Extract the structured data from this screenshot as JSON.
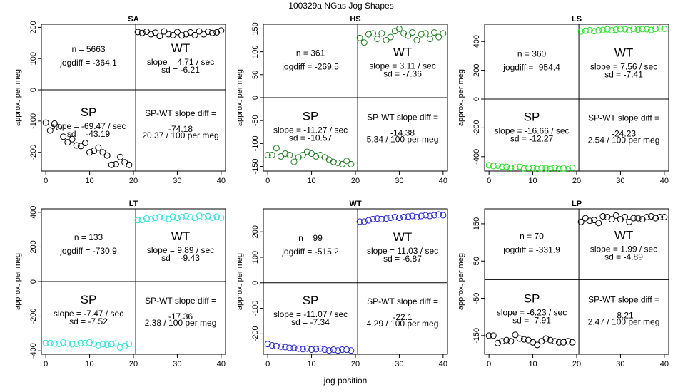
{
  "page": {
    "title": "100329a    NGas Jog Shapes",
    "xlabel": "jog position",
    "ylabel": "approx. per meg"
  },
  "chart_data": [
    {
      "type": "scatter",
      "title": "SA",
      "color": "#000000",
      "xlim": [
        -1,
        41
      ],
      "ylim": [
        -260,
        210
      ],
      "xticks": [
        0,
        10,
        20,
        30,
        40
      ],
      "yticks": [
        -200,
        -100,
        0,
        100,
        200
      ],
      "sp": [
        -105,
        -130,
        -108,
        -120,
        -150,
        -168,
        -158,
        -178,
        -180,
        -170,
        -200,
        -195,
        -185,
        -200,
        -210,
        -240,
        -238,
        -215,
        -232,
        -240
      ],
      "wt": [
        185,
        182,
        186,
        178,
        183,
        172,
        187,
        178,
        175,
        185,
        174,
        178,
        184,
        175,
        187,
        178,
        186,
        182,
        184,
        190
      ],
      "n": "n = 5663",
      "jogdiff": "jogdiff = -364.1",
      "wt_slope": "slope = 4.71 / sec",
      "wt_sd": "sd = -6.21",
      "sp_slope": "slope = -69.47 / sec",
      "sp_sd": "sd = -43.19",
      "diff_label": "SP-WT slope diff =",
      "diff_value": "-74.18",
      "diff_rate": "20.37 / 100 per meg"
    },
    {
      "type": "scatter",
      "title": "HS",
      "color": "#1e7b1e",
      "xlim": [
        -1,
        41
      ],
      "ylim": [
        -160,
        160
      ],
      "xticks": [
        0,
        10,
        20,
        30,
        40
      ],
      "yticks": [
        -150,
        -100,
        -50,
        0,
        50,
        100,
        150
      ],
      "sp": [
        -125,
        -125,
        -110,
        -128,
        -122,
        -125,
        -140,
        -130,
        -125,
        -118,
        -122,
        -128,
        -125,
        -130,
        -135,
        -140,
        -142,
        -145,
        -138,
        -145
      ],
      "wt": [
        130,
        120,
        138,
        140,
        128,
        140,
        125,
        132,
        145,
        150,
        140,
        135,
        142,
        125,
        138,
        140,
        128,
        142,
        132,
        140
      ],
      "n": "n = 361",
      "jogdiff": "jogdiff = -269.5",
      "wt_slope": "slope = 3.11 / sec",
      "wt_sd": "sd = -7.36",
      "sp_slope": "slope = -11.27 / sec",
      "sp_sd": "sd = -10.57",
      "diff_label": "SP-WT slope diff =",
      "diff_value": "-14.38",
      "diff_rate": "5.34 / 100 per meg"
    },
    {
      "type": "scatter",
      "title": "LS",
      "color": "#22dd22",
      "xlim": [
        -1,
        41
      ],
      "ylim": [
        -500,
        520
      ],
      "xticks": [
        0,
        10,
        20,
        30,
        40
      ],
      "yticks": [
        -400,
        -200,
        0,
        200,
        400
      ],
      "sp": [
        -460,
        -465,
        -462,
        -470,
        -470,
        -478,
        -475,
        -470,
        -482,
        -478,
        -480,
        -485,
        -480,
        -480,
        -485,
        -478,
        -485,
        -480,
        -488,
        -478
      ],
      "wt": [
        470,
        475,
        478,
        472,
        478,
        480,
        485,
        478,
        482,
        486,
        485,
        478,
        488,
        482,
        486,
        485,
        480,
        488,
        490,
        488
      ],
      "n": "n = 360",
      "jogdiff": "jogdiff = -954.4",
      "wt_slope": "slope = 7.56 / sec",
      "wt_sd": "sd = -7.41",
      "sp_slope": "slope = -16.66 / sec",
      "sp_sd": "sd = -12.27",
      "diff_label": "SP-WT slope diff =",
      "diff_value": "-24.23",
      "diff_rate": "2.54 / 100 per meg"
    },
    {
      "type": "scatter",
      "title": "LT",
      "color": "#33dddd",
      "xlim": [
        -1,
        41
      ],
      "ylim": [
        -420,
        420
      ],
      "xticks": [
        0,
        10,
        20,
        30,
        40
      ],
      "yticks": [
        -400,
        -200,
        0,
        200,
        400
      ],
      "sp": [
        -355,
        -355,
        -358,
        -360,
        -352,
        -358,
        -362,
        -360,
        -355,
        -355,
        -352,
        -360,
        -368,
        -362,
        -365,
        -362,
        -358,
        -380,
        -372,
        -360
      ],
      "wt": [
        355,
        355,
        365,
        360,
        368,
        372,
        370,
        362,
        375,
        368,
        372,
        378,
        372,
        368,
        380,
        372,
        378,
        368,
        375,
        370
      ],
      "n": "n = 133",
      "jogdiff": "jogdiff = -730.9",
      "wt_slope": "slope = 9.89 / sec",
      "wt_sd": "sd = -9.43",
      "sp_slope": "slope = -7.47 / sec",
      "sp_sd": "sd = -7.52",
      "diff_label": "SP-WT slope diff =",
      "diff_value": "-17.36",
      "diff_rate": "2.38 / 100 per meg"
    },
    {
      "type": "scatter",
      "title": "WT",
      "color": "#2222cc",
      "xlim": [
        -1,
        41
      ],
      "ylim": [
        -280,
        290
      ],
      "xticks": [
        0,
        10,
        20,
        30,
        40
      ],
      "yticks": [
        -200,
        -100,
        0,
        100,
        200
      ],
      "sp": [
        -240,
        -245,
        -248,
        -250,
        -252,
        -255,
        -255,
        -258,
        -260,
        -258,
        -262,
        -260,
        -258,
        -262,
        -265,
        -262,
        -265,
        -262,
        -262,
        -265
      ],
      "wt": [
        240,
        240,
        245,
        250,
        252,
        250,
        252,
        255,
        258,
        255,
        258,
        260,
        262,
        258,
        262,
        265,
        262,
        265,
        268,
        265
      ],
      "n": "n = 99",
      "jogdiff": "jogdiff = -515.2",
      "wt_slope": "slope = 11.03 / sec",
      "wt_sd": "sd = -6.87",
      "sp_slope": "slope = -11.07 / sec",
      "sp_sd": "sd = -7.34",
      "diff_label": "SP-WT slope diff =",
      "diff_value": "-22.1",
      "diff_rate": "4.29 / 100 per meg"
    },
    {
      "type": "scatter",
      "title": "LP",
      "color": "#000000",
      "xlim": [
        -1,
        41
      ],
      "ylim": [
        -200,
        190
      ],
      "xticks": [
        0,
        10,
        20,
        30,
        40
      ],
      "yticks": [
        -150,
        -50,
        50,
        150
      ],
      "sp": [
        -150,
        -150,
        -170,
        -165,
        -162,
        -165,
        -148,
        -158,
        -160,
        -162,
        -168,
        -175,
        -165,
        -158,
        -162,
        -165,
        -168,
        -168,
        -165,
        -168
      ],
      "wt": [
        155,
        165,
        158,
        160,
        152,
        170,
        168,
        162,
        172,
        162,
        168,
        155,
        165,
        165,
        162,
        168,
        170,
        165,
        168,
        168
      ],
      "n": "n = 70",
      "jogdiff": "jogdiff = -331.9",
      "wt_slope": "slope = 1.99 / sec",
      "wt_sd": "sd = -4.89",
      "sp_slope": "slope = -6.23 / sec",
      "sp_sd": "sd = -7.91",
      "diff_label": "SP-WT slope diff =",
      "diff_value": "-8.21",
      "diff_rate": "2.47 / 100 per meg"
    }
  ]
}
